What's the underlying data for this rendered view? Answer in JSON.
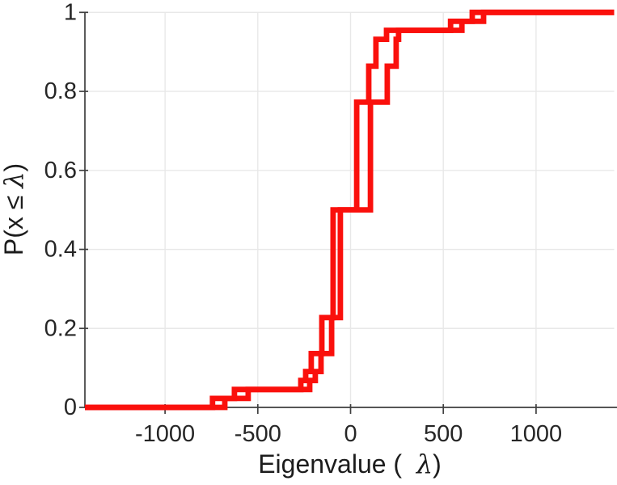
{
  "figure": {
    "background": "#ffffff"
  },
  "styles": {
    "grid_color": "#e8e8e8",
    "axis_color": "#3f3f3f",
    "tick_label_color": "#262626",
    "axis_label_color": "#1c1c1c",
    "tick_font_size": 29
  },
  "chart_data": {
    "type": "line",
    "subtype": "ecdf_stairs",
    "title": "",
    "xlabel": "Eigenvalue (  λ)",
    "ylabel": "P(x ≤ λ)",
    "xlabel_parts": {
      "prefix": "Eigenvalue (  ",
      "lambda": "λ",
      "suffix": ")"
    },
    "ylabel_parts": {
      "prefix": "P(x ≤ ",
      "lambda": "λ",
      "suffix": ")"
    },
    "xlim": [
      -1432,
      1421
    ],
    "ylim": [
      0,
      1
    ],
    "x_ticks": [
      -1000,
      -500,
      0,
      500,
      1000
    ],
    "x_tick_labels": [
      "-1000",
      "-500",
      "0",
      "500",
      "1000"
    ],
    "y_ticks": [
      0,
      0.2,
      0.4,
      0.6,
      0.8,
      1
    ],
    "y_tick_labels": [
      "0",
      "0.2",
      "0.4",
      "0.6",
      "0.8",
      "1"
    ],
    "grid": true,
    "legend_position": "none",
    "line_color": "#fa100c",
    "line_width": 6.8,
    "series": [
      {
        "name": "ecdf-curve-1",
        "n": 44,
        "eigenvalues": [
          -744,
          -626,
          -268,
          -242,
          -212,
          -212,
          -155,
          -155,
          -155,
          -155,
          -94,
          -94,
          -94,
          -94,
          -94,
          -94,
          -94,
          -94,
          -94,
          -94,
          -94,
          -94,
          33,
          33,
          33,
          33,
          33,
          33,
          33,
          33,
          33,
          33,
          33,
          33,
          98,
          98,
          98,
          98,
          137,
          137,
          137,
          194,
          539,
          656
        ]
      },
      {
        "name": "ecdf-curve-2",
        "n": 44,
        "eigenvalues": [
          -678,
          -552,
          -220,
          -190,
          -159,
          -159,
          -102,
          -102,
          -102,
          -102,
          -55,
          -55,
          -55,
          -55,
          -55,
          -55,
          -55,
          -55,
          -55,
          -55,
          -55,
          -55,
          107,
          107,
          107,
          107,
          107,
          107,
          107,
          107,
          107,
          107,
          107,
          107,
          198,
          198,
          198,
          198,
          246,
          246,
          246,
          259,
          600,
          717
        ]
      }
    ]
  }
}
